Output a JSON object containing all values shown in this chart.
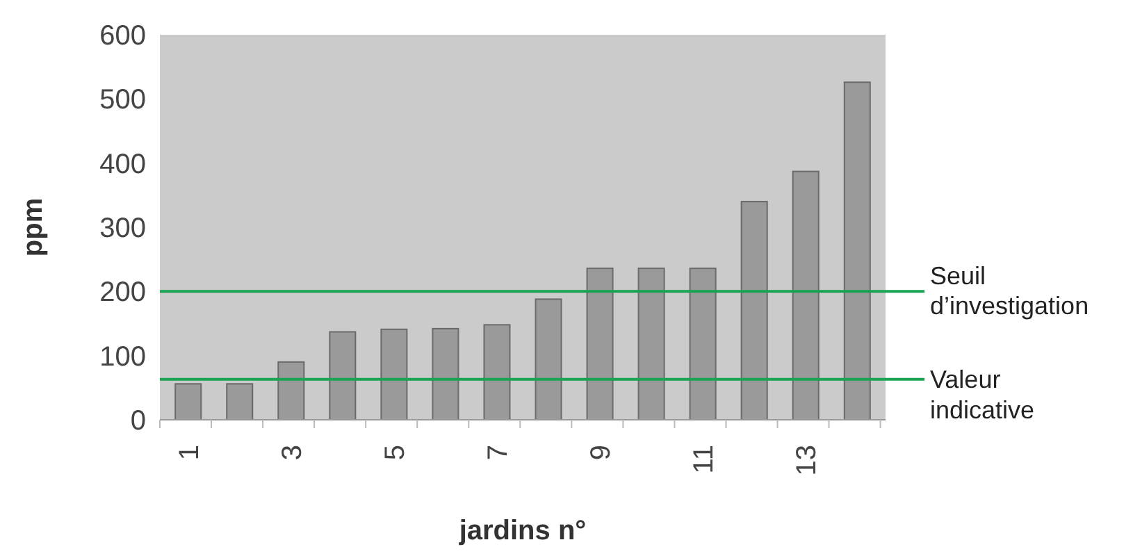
{
  "chart_data": {
    "type": "bar",
    "xlabel": "jardins n°",
    "ylabel": "ppm",
    "categories": [
      "1",
      null,
      "3",
      null,
      "5",
      null,
      "7",
      null,
      "9",
      null,
      "11",
      null,
      "13",
      null
    ],
    "values": [
      56,
      56,
      90,
      137,
      141,
      142,
      148,
      188,
      236,
      236,
      236,
      340,
      387,
      526
    ],
    "color": "#9a9a9a",
    "ylim": [
      0,
      600
    ],
    "yticks": [
      0,
      100,
      200,
      300,
      400,
      500,
      600
    ],
    "ref_lines": [
      {
        "axis": "y",
        "value": 200,
        "label": "Seuil d’investigation",
        "color": "#1aa352"
      },
      {
        "axis": "y",
        "value": 63,
        "label": "Valeur indicative",
        "color": "#1aa352"
      }
    ]
  }
}
